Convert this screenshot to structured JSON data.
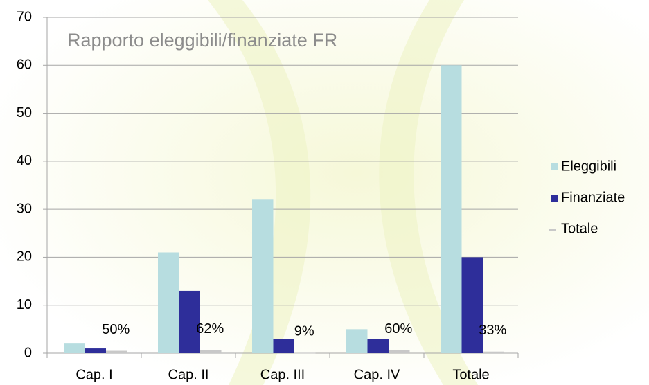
{
  "chart_data": {
    "type": "bar",
    "title": "Rapporto eleggibili/finanziate FR",
    "categories": [
      "Cap. I",
      "Cap. II",
      "Cap. III",
      "Cap. IV",
      "Totale"
    ],
    "series": [
      {
        "name": "Eleggibili",
        "color": "#b7dde0",
        "values": [
          2,
          21,
          32,
          5,
          60
        ]
      },
      {
        "name": "Finanziate",
        "color": "#2e2e9a",
        "values": [
          1,
          13,
          3,
          3,
          20
        ]
      },
      {
        "name": "Totale",
        "color": "#c8c8c8",
        "values": [
          0.5,
          0.62,
          0.09,
          0.6,
          0.33
        ],
        "value_labels": [
          "50%",
          "62%",
          "9%",
          "60%",
          "33%"
        ]
      }
    ],
    "ylim": [
      0,
      70
    ],
    "yticks": [
      0,
      10,
      20,
      30,
      40,
      50,
      60,
      70
    ],
    "grid": true,
    "legend": "right"
  }
}
